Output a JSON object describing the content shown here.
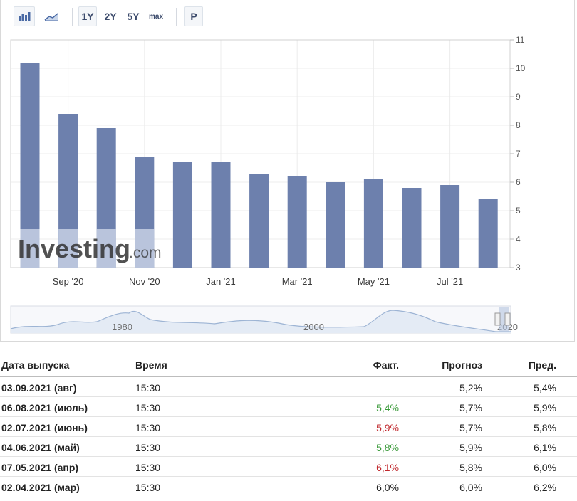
{
  "toolbar": {
    "bar_icon": "bar-chart-icon",
    "area_icon": "area-chart-icon",
    "range_1y": "1Y",
    "range_2y": "2Y",
    "range_5y": "5Y",
    "range_max": "max",
    "p_label": "P"
  },
  "watermark": {
    "main": "Investing",
    "suffix": ".com"
  },
  "colors": {
    "bar": "#6d80ad",
    "bar_highlight": "#b9c4dc",
    "navigator_line": "#9db4d4",
    "green": "#3a9a3a",
    "red": "#c0282d"
  },
  "chart_data": {
    "type": "bar",
    "categories": [
      "Aug '20",
      "Sep '20",
      "Oct '20",
      "Nov '20",
      "Dec '20",
      "Jan '21",
      "Feb '21",
      "Mar '21",
      "Apr '21",
      "May '21",
      "Jun '21",
      "Jul '21",
      "Aug '21"
    ],
    "x_tick_labels": [
      "Sep '20",
      "Nov '20",
      "Jan '21",
      "Mar '21",
      "May '21",
      "Jul '21"
    ],
    "values": [
      10.2,
      8.4,
      7.9,
      6.9,
      6.7,
      6.7,
      6.3,
      6.2,
      6.0,
      6.1,
      5.8,
      5.9,
      5.4
    ],
    "ylim": [
      3,
      11
    ],
    "y_ticks": [
      3,
      4,
      5,
      6,
      7,
      8,
      9,
      10,
      11
    ],
    "grid": true,
    "navigator_labels": [
      "1980",
      "2000",
      "2020"
    ]
  },
  "table": {
    "headers": {
      "date": "Дата выпуска",
      "time": "Время",
      "actual": "Факт.",
      "forecast": "Прогноз",
      "previous": "Пред."
    },
    "rows": [
      {
        "date": "03.09.2021 (авг)",
        "time": "15:30",
        "actual": "",
        "actual_color": "",
        "forecast": "5,2%",
        "previous": "5,4%"
      },
      {
        "date": "06.08.2021 (июль)",
        "time": "15:30",
        "actual": "5,4%",
        "actual_color": "green",
        "forecast": "5,7%",
        "previous": "5,9%"
      },
      {
        "date": "02.07.2021 (июнь)",
        "time": "15:30",
        "actual": "5,9%",
        "actual_color": "red",
        "forecast": "5,7%",
        "previous": "5,8%"
      },
      {
        "date": "04.06.2021 (май)",
        "time": "15:30",
        "actual": "5,8%",
        "actual_color": "green",
        "forecast": "5,9%",
        "previous": "6,1%"
      },
      {
        "date": "07.05.2021 (апр)",
        "time": "15:30",
        "actual": "6,1%",
        "actual_color": "red",
        "forecast": "5,8%",
        "previous": "6,0%"
      },
      {
        "date": "02.04.2021 (мар)",
        "time": "15:30",
        "actual": "6,0%",
        "actual_color": "",
        "forecast": "6,0%",
        "previous": "6,2%"
      }
    ]
  }
}
